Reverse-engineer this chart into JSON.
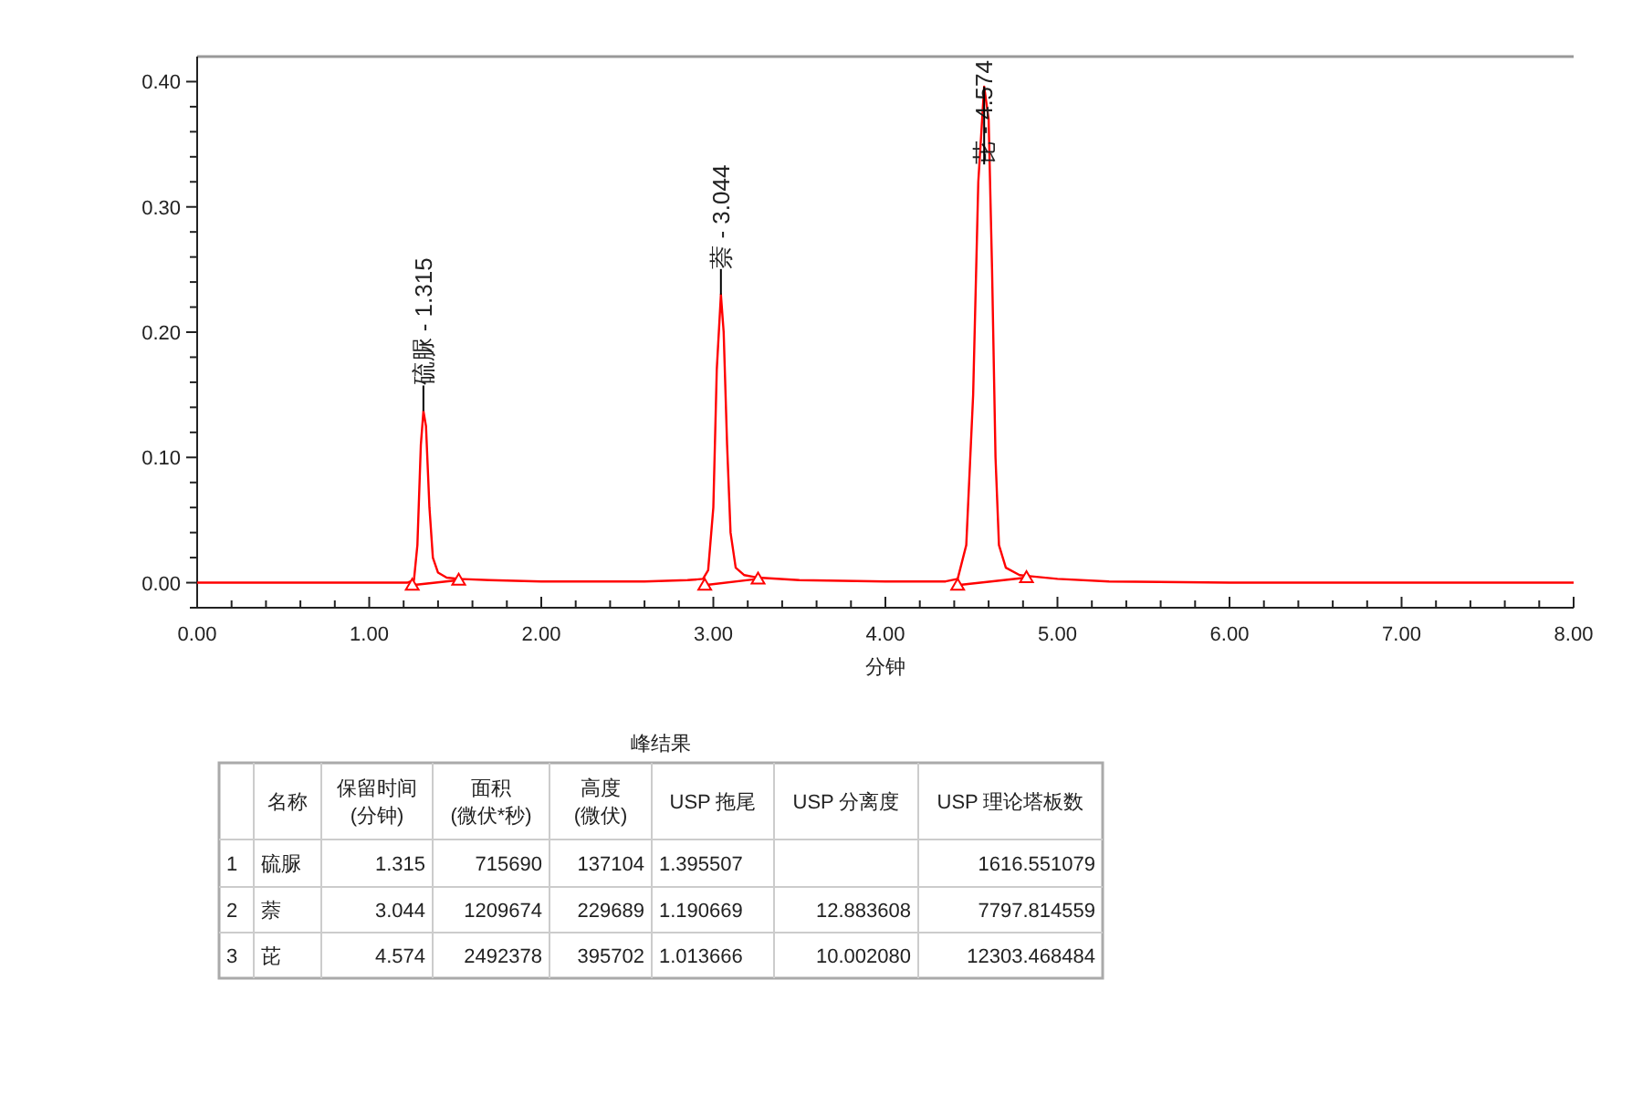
{
  "chart_data": [
    {
      "type": "line",
      "xlabel": "分钟",
      "xlim": [
        0,
        8
      ],
      "ylim": [
        -0.02,
        0.42
      ],
      "xticks": [
        {
          "value": 0,
          "label": "0.00"
        },
        {
          "value": 0.2,
          "label": null
        },
        {
          "value": 0.4,
          "label": null
        },
        {
          "value": 0.6,
          "label": null
        },
        {
          "value": 0.8,
          "label": null
        },
        {
          "value": 1,
          "label": "1.00"
        },
        {
          "value": 1.2,
          "label": null
        },
        {
          "value": 1.4,
          "label": null
        },
        {
          "value": 1.6,
          "label": null
        },
        {
          "value": 1.8,
          "label": null
        },
        {
          "value": 2,
          "label": "2.00"
        },
        {
          "value": 2.2,
          "label": null
        },
        {
          "value": 2.4,
          "label": null
        },
        {
          "value": 2.6,
          "label": null
        },
        {
          "value": 2.8,
          "label": null
        },
        {
          "value": 3,
          "label": "3.00"
        },
        {
          "value": 3.2,
          "label": null
        },
        {
          "value": 3.4,
          "label": null
        },
        {
          "value": 3.6,
          "label": null
        },
        {
          "value": 3.8,
          "label": null
        },
        {
          "value": 4,
          "label": "4.00"
        },
        {
          "value": 4.2,
          "label": null
        },
        {
          "value": 4.4,
          "label": null
        },
        {
          "value": 4.6,
          "label": null
        },
        {
          "value": 4.8,
          "label": null
        },
        {
          "value": 5,
          "label": "5.00"
        },
        {
          "value": 5.2,
          "label": null
        },
        {
          "value": 5.4,
          "label": null
        },
        {
          "value": 5.6,
          "label": null
        },
        {
          "value": 5.8,
          "label": null
        },
        {
          "value": 6,
          "label": "6.00"
        },
        {
          "value": 6.2,
          "label": null
        },
        {
          "value": 6.4,
          "label": null
        },
        {
          "value": 6.6,
          "label": null
        },
        {
          "value": 6.8,
          "label": null
        },
        {
          "value": 7,
          "label": "7.00"
        },
        {
          "value": 7.2,
          "label": null
        },
        {
          "value": 7.4,
          "label": null
        },
        {
          "value": 7.6,
          "label": null
        },
        {
          "value": 7.8,
          "label": null
        },
        {
          "value": 8,
          "label": "8.00"
        }
      ],
      "yticks": [
        {
          "value": -0.02,
          "label": null
        },
        {
          "value": 0,
          "label": "0.00"
        },
        {
          "value": 0.02,
          "label": null
        },
        {
          "value": 0.04,
          "label": null
        },
        {
          "value": 0.06,
          "label": null
        },
        {
          "value": 0.08,
          "label": null
        },
        {
          "value": 0.1,
          "label": "0.10"
        },
        {
          "value": 0.12,
          "label": null
        },
        {
          "value": 0.14,
          "label": null
        },
        {
          "value": 0.16,
          "label": null
        },
        {
          "value": 0.18,
          "label": null
        },
        {
          "value": 0.2,
          "label": "0.20"
        },
        {
          "value": 0.22,
          "label": null
        },
        {
          "value": 0.24,
          "label": null
        },
        {
          "value": 0.26,
          "label": null
        },
        {
          "value": 0.28,
          "label": null
        },
        {
          "value": 0.3,
          "label": "0.30"
        },
        {
          "value": 0.32,
          "label": null
        },
        {
          "value": 0.34,
          "label": null
        },
        {
          "value": 0.36,
          "label": null
        },
        {
          "value": 0.38,
          "label": null
        },
        {
          "value": 0.4,
          "label": "0.40"
        }
      ],
      "series": [
        {
          "color": "#ff0000",
          "x": [
            0,
            1,
            1.22,
            1.26,
            1.28,
            1.3,
            1.315,
            1.33,
            1.35,
            1.37,
            1.4,
            1.45,
            1.52,
            1.7,
            2,
            2.6,
            2.85,
            2.94,
            2.97,
            3,
            3.02,
            3.044,
            3.06,
            3.08,
            3.1,
            3.13,
            3.18,
            3.26,
            3.5,
            4,
            4.35,
            4.42,
            4.47,
            4.51,
            4.54,
            4.574,
            4.6,
            4.62,
            4.64,
            4.66,
            4.7,
            4.78,
            4.85,
            5,
            5.3,
            6,
            8
          ],
          "values": [
            0,
            0,
            0,
            0.002,
            0.03,
            0.11,
            0.137,
            0.125,
            0.06,
            0.02,
            0.008,
            0.004,
            0.003,
            0.002,
            0.001,
            0.001,
            0.002,
            0.003,
            0.01,
            0.06,
            0.17,
            0.23,
            0.2,
            0.11,
            0.04,
            0.012,
            0.006,
            0.004,
            0.002,
            0.001,
            0.001,
            0.003,
            0.03,
            0.15,
            0.32,
            0.396,
            0.37,
            0.25,
            0.1,
            0.03,
            0.012,
            0.006,
            0.005,
            0.003,
            0.001,
            0,
            0
          ]
        },
        {
          "color": "#ff0000",
          "marker": "triangle",
          "x": [
            1.25,
            1.52
          ],
          "values": [
            -0.002,
            0.002
          ]
        },
        {
          "color": "#ff0000",
          "marker": "triangle",
          "x": [
            2.95,
            3.26
          ],
          "values": [
            -0.002,
            0.003
          ]
        },
        {
          "color": "#ff0000",
          "marker": "triangle",
          "x": [
            4.42,
            4.82
          ],
          "values": [
            -0.002,
            0.004
          ]
        }
      ],
      "annotations": [
        {
          "text": "硫脲 - 1.315",
          "x": 1.315,
          "y": 0.137
        },
        {
          "text": "萘 - 3.044",
          "x": 3.044,
          "y": 0.23
        },
        {
          "text": "芘 - 4.574",
          "x": 4.574,
          "y": 0.396
        }
      ]
    },
    {
      "type": "other",
      "title": "峰结果",
      "categories": [
        null,
        "名称",
        "保留时间\n(分钟)",
        "面积\n(微伏*秒)",
        "高度\n(微伏)",
        "USP 拖尾",
        "USP 分离度",
        "USP 理论塔板数"
      ],
      "cell_labels": [
        [
          "1",
          "硫脲",
          "1.315",
          "715690",
          "137104",
          "1.395507",
          null,
          "1616.551079"
        ],
        [
          "2",
          "萘",
          "3.044",
          "1209674",
          "229689",
          "1.190669",
          "12.883608",
          "7797.814559"
        ],
        [
          "3",
          "芘",
          "4.574",
          "2492378",
          "395702",
          "1.013666",
          "10.002080",
          "12303.468484"
        ]
      ]
    }
  ]
}
